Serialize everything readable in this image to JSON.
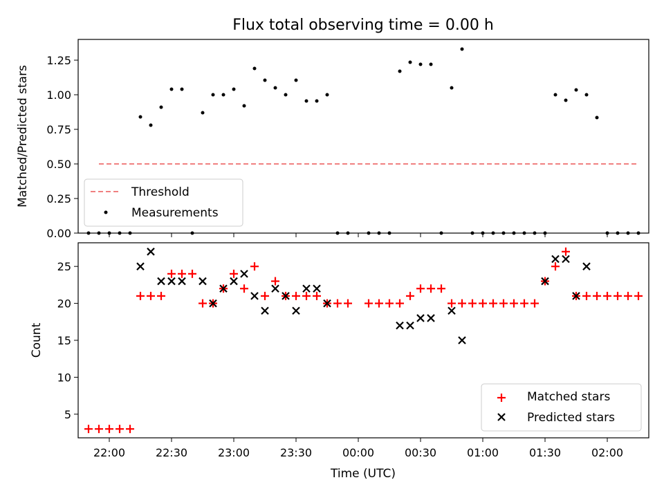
{
  "chart_data": [
    {
      "type": "scatter",
      "title": "Flux total observing time = 0.00 h",
      "xlabel": "",
      "ylabel": "Matched/Predicted stars",
      "ylim": [
        0,
        1.4
      ],
      "xlim": [
        "21:45",
        "02:20"
      ],
      "yticks": [
        "0.00",
        "0.25",
        "0.50",
        "0.75",
        "1.00",
        "1.25"
      ],
      "legend_position": "lower-left",
      "series": [
        {
          "name": "Threshold",
          "style": "dashed-line",
          "color": "#f08080",
          "x": [
            "21:55",
            "02:15"
          ],
          "y": [
            0.5,
            0.5
          ]
        },
        {
          "name": "Measurements",
          "style": "dots",
          "color": "#000000",
          "x": [
            "21:55",
            "22:00",
            "22:05",
            "22:10",
            "22:15",
            "22:20",
            "22:25",
            "22:30",
            "22:35",
            "22:40",
            "22:45",
            "22:50",
            "22:55",
            "23:00",
            "23:05",
            "23:10",
            "23:15",
            "23:20",
            "23:25",
            "23:30",
            "23:35",
            "23:40",
            "23:45",
            "23:50",
            "23:55",
            "00:05",
            "00:10",
            "00:15",
            "00:20",
            "00:25",
            "00:30",
            "00:35",
            "00:40",
            "00:45",
            "00:50",
            "00:55",
            "01:00",
            "01:05",
            "01:10",
            "01:15",
            "01:20",
            "01:25",
            "01:30",
            "01:35",
            "01:40",
            "01:45",
            "01:50",
            "01:55",
            "02:00",
            "02:05",
            "02:10",
            "02:15"
          ],
          "y": [
            0,
            0,
            0,
            0,
            0.84,
            0.78,
            0.91,
            1.04,
            1.04,
            0,
            0.87,
            1.0,
            1.0,
            1.04,
            0.92,
            1.19,
            1.105,
            1.05,
            1.0,
            1.105,
            0.955,
            0.955,
            1.0,
            0,
            0,
            0,
            0,
            0,
            1.17,
            1.235,
            1.22,
            1.22,
            0,
            1.05,
            1.33,
            0,
            0,
            0,
            0,
            0,
            0,
            0,
            0,
            1.0,
            0.96,
            1.035,
            1.0,
            0.835,
            0,
            0,
            0,
            0
          ]
        },
        {
          "name": "",
          "style": "dots",
          "color": "#000000",
          "x": [
            "21:50"
          ],
          "y": [
            0
          ]
        }
      ]
    },
    {
      "type": "scatter",
      "title": "",
      "xlabel": "Time (UTC)",
      "ylabel": "Count",
      "ylim": [
        1.8,
        28.2
      ],
      "xlim": [
        "21:45",
        "02:20"
      ],
      "yticks": [
        "5",
        "10",
        "15",
        "20",
        "25"
      ],
      "xticks": [
        "22:00",
        "22:30",
        "23:00",
        "23:30",
        "00:00",
        "00:30",
        "01:00",
        "01:30",
        "02:00"
      ],
      "legend_position": "lower-right",
      "series": [
        {
          "name": "Matched stars",
          "marker": "plus",
          "color": "#ff0000",
          "x": [
            "21:50",
            "21:55",
            "22:00",
            "22:05",
            "22:10",
            "22:15",
            "22:20",
            "22:25",
            "22:30",
            "22:35",
            "22:40",
            "22:45",
            "22:50",
            "22:55",
            "23:00",
            "23:05",
            "23:10",
            "23:15",
            "23:20",
            "23:25",
            "23:30",
            "23:35",
            "23:40",
            "23:45",
            "23:50",
            "23:55",
            "00:05",
            "00:10",
            "00:15",
            "00:20",
            "00:25",
            "00:30",
            "00:35",
            "00:40",
            "00:45",
            "00:50",
            "00:55",
            "01:00",
            "01:05",
            "01:10",
            "01:15",
            "01:20",
            "01:25",
            "01:30",
            "01:35",
            "01:40",
            "01:45",
            "01:50",
            "01:55",
            "02:00",
            "02:05",
            "02:10",
            "02:15"
          ],
          "y": [
            3,
            3,
            3,
            3,
            3,
            21,
            21,
            21,
            24,
            24,
            24,
            20,
            20,
            22,
            24,
            22,
            25,
            21,
            23,
            21,
            21,
            21,
            21,
            20,
            20,
            20,
            20,
            20,
            20,
            20,
            21,
            22,
            22,
            22,
            20,
            20,
            20,
            20,
            20,
            20,
            20,
            20,
            20,
            23,
            25,
            27,
            21,
            21,
            21,
            21,
            21,
            21,
            21
          ]
        },
        {
          "name": "Predicted stars",
          "marker": "x",
          "color": "#000000",
          "x": [
            "22:15",
            "22:20",
            "22:25",
            "22:30",
            "22:35",
            "22:45",
            "22:50",
            "22:55",
            "23:00",
            "23:05",
            "23:10",
            "23:15",
            "23:20",
            "23:25",
            "23:30",
            "23:35",
            "23:40",
            "23:45",
            "00:20",
            "00:25",
            "00:30",
            "00:35",
            "00:45",
            "00:50",
            "01:30",
            "01:35",
            "01:40",
            "01:45",
            "01:50"
          ],
          "y": [
            25,
            27,
            23,
            23,
            23,
            23,
            20,
            22,
            23,
            24,
            21,
            19,
            22,
            21,
            19,
            22,
            22,
            20,
            17,
            17,
            18,
            18,
            19,
            15,
            23,
            26,
            26,
            21,
            25
          ]
        }
      ]
    }
  ]
}
